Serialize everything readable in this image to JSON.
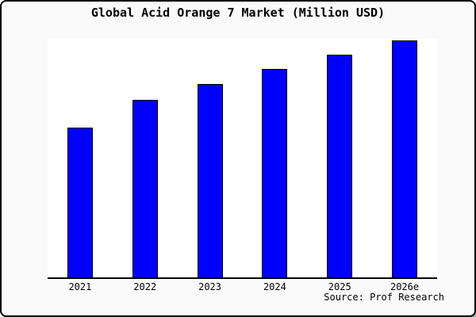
{
  "chart_data": {
    "type": "bar",
    "title": "Global Acid Orange 7 Market (Million USD)",
    "categories": [
      "2021",
      "2022",
      "2023",
      "2024",
      "2025",
      "2026e"
    ],
    "values": [
      63,
      75,
      81.5,
      88,
      94,
      100
    ],
    "xlabel": "",
    "ylabel": "",
    "ylim": [
      0,
      101
    ],
    "grid": false,
    "legend": "none",
    "y_axis_labels_visible": false,
    "source": "Source: Prof Research",
    "bar_color": "#0000fe",
    "bar_border_color": "#000000",
    "axis_color": "#000000",
    "background": "#fafafa",
    "plot_background": "#ffffff"
  }
}
